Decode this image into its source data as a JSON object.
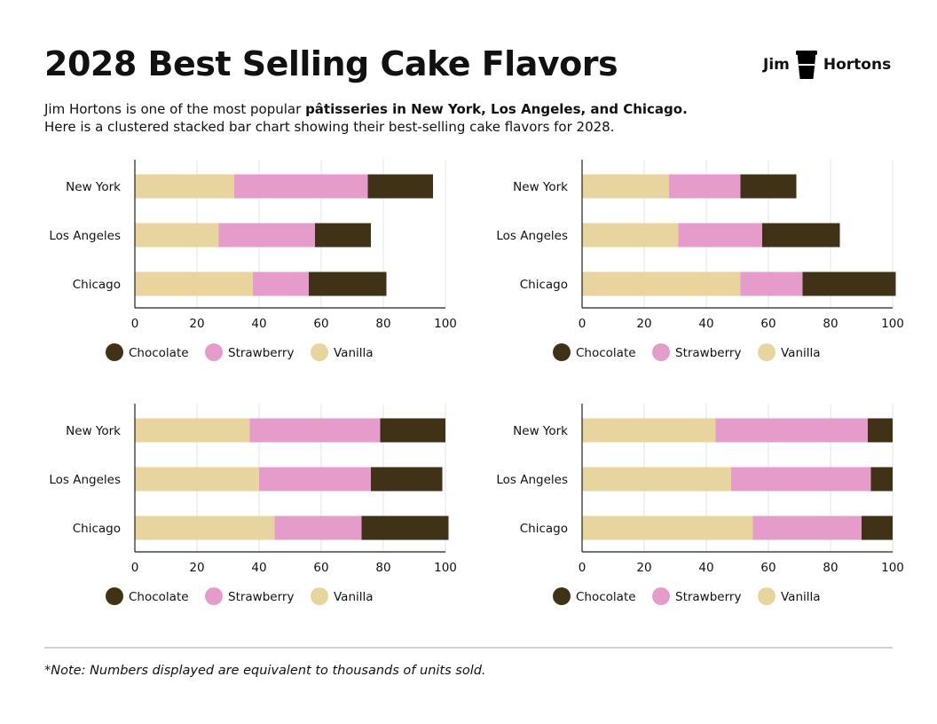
{
  "title": "2028 Best Selling Cake Flavors",
  "logo": {
    "text_left": "Jim",
    "text_right": "Hortons",
    "icon": "coffee-cup-icon"
  },
  "intro": {
    "line1_prefix": "Jim Hortons is one of the most popular ",
    "line1_bold": "pâtisseries in New York, Los Angeles, and Chicago.",
    "line2": "Here is a clustered stacked bar chart showing their best-selling cake flavors for 2028."
  },
  "note": "*Note: Numbers displayed are equivalent to thousands of units sold.",
  "colors": {
    "Vanilla": "#e8d49e",
    "Strawberry": "#e59ccb",
    "Chocolate": "#3f3217",
    "grid": "#e3e3e3",
    "axis": "#222222"
  },
  "chart_data": [
    {
      "type": "bar",
      "orientation": "horizontal",
      "stacked": true,
      "categories": [
        "New York",
        "Los Angeles",
        "Chicago"
      ],
      "series": [
        {
          "name": "Vanilla",
          "values": [
            32,
            27,
            38
          ]
        },
        {
          "name": "Strawberry",
          "values": [
            43,
            31,
            18
          ]
        },
        {
          "name": "Chocolate",
          "values": [
            21,
            18,
            25
          ]
        }
      ],
      "xticks": [
        "0",
        "20",
        "40",
        "60",
        "80",
        "100"
      ],
      "xlim": [
        0,
        100
      ],
      "legend": [
        "Chocolate",
        "Strawberry",
        "Vanilla"
      ],
      "legend_position": "bottom",
      "grid": true
    },
    {
      "type": "bar",
      "orientation": "horizontal",
      "stacked": true,
      "categories": [
        "New York",
        "Los Angeles",
        "Chicago"
      ],
      "series": [
        {
          "name": "Vanilla",
          "values": [
            28,
            31,
            51
          ]
        },
        {
          "name": "Strawberry",
          "values": [
            23,
            27,
            20
          ]
        },
        {
          "name": "Chocolate",
          "values": [
            18,
            25,
            30
          ]
        }
      ],
      "xticks": [
        "0",
        "20",
        "40",
        "60",
        "80",
        "100"
      ],
      "xlim": [
        0,
        100
      ],
      "legend": [
        "Chocolate",
        "Strawberry",
        "Vanilla"
      ],
      "legend_position": "bottom",
      "grid": true
    },
    {
      "type": "bar",
      "orientation": "horizontal",
      "stacked": true,
      "categories": [
        "New York",
        "Los Angeles",
        "Chicago"
      ],
      "series": [
        {
          "name": "Vanilla",
          "values": [
            37,
            40,
            45
          ]
        },
        {
          "name": "Strawberry",
          "values": [
            42,
            36,
            28
          ]
        },
        {
          "name": "Chocolate",
          "values": [
            21,
            23,
            28
          ]
        }
      ],
      "xticks": [
        "0",
        "20",
        "40",
        "60",
        "80",
        "100"
      ],
      "xlim": [
        0,
        100
      ],
      "legend": [
        "Chocolate",
        "Strawberry",
        "Vanilla"
      ],
      "legend_position": "bottom",
      "grid": true
    },
    {
      "type": "bar",
      "orientation": "horizontal",
      "stacked": true,
      "categories": [
        "New York",
        "Los Angeles",
        "Chicago"
      ],
      "series": [
        {
          "name": "Vanilla",
          "values": [
            43,
            48,
            55
          ]
        },
        {
          "name": "Strawberry",
          "values": [
            49,
            45,
            35
          ]
        },
        {
          "name": "Chocolate",
          "values": [
            8,
            7,
            10
          ]
        }
      ],
      "xticks": [
        "0",
        "20",
        "40",
        "60",
        "80",
        "100"
      ],
      "xlim": [
        0,
        100
      ],
      "legend": [
        "Chocolate",
        "Strawberry",
        "Vanilla"
      ],
      "legend_position": "bottom",
      "grid": true
    }
  ]
}
